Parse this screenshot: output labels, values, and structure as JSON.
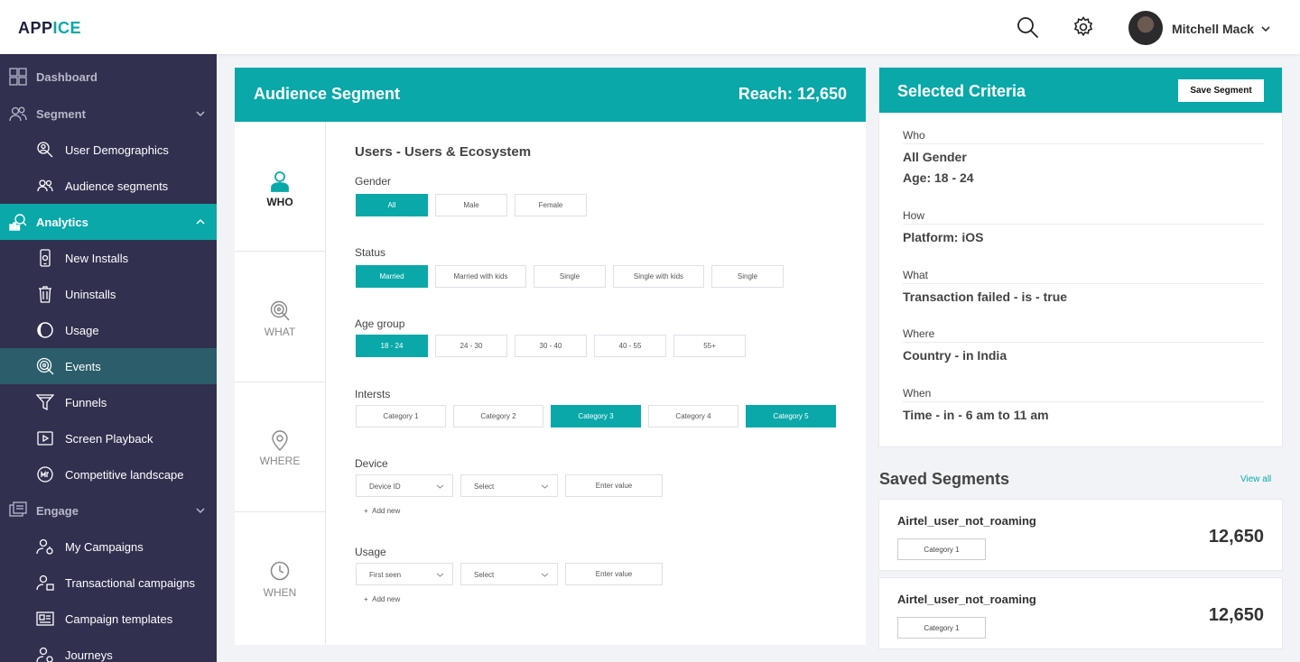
{
  "header": {
    "logo_part1": "APP",
    "logo_part2": "ICE",
    "user_name": "Mitchell Mack",
    "accent": "#0aa8a8"
  },
  "sidebar": {
    "items": [
      {
        "label": "Dashboard",
        "icon": "dashboard-icon",
        "level": "top"
      },
      {
        "label": "Segment",
        "icon": "users-icon",
        "level": "top"
      },
      {
        "label": "User Demographics",
        "icon": "user-search-icon",
        "level": "sub"
      },
      {
        "label": "Audience segments",
        "icon": "audience-icon",
        "level": "sub"
      },
      {
        "label": "Analytics",
        "icon": "analytics-icon",
        "level": "top"
      },
      {
        "label": "New Installs",
        "icon": "phone-icon",
        "level": "sub"
      },
      {
        "label": "Uninstalls",
        "icon": "trash-icon",
        "level": "sub"
      },
      {
        "label": "Usage",
        "icon": "usage-icon",
        "level": "sub"
      },
      {
        "label": "Events",
        "icon": "events-icon",
        "level": "sub"
      },
      {
        "label": "Funnels",
        "icon": "funnel-icon",
        "level": "sub"
      },
      {
        "label": "Screen Playback",
        "icon": "playback-icon",
        "level": "sub"
      },
      {
        "label": "Competitive landscape",
        "icon": "landscape-icon",
        "level": "sub"
      },
      {
        "label": "Engage",
        "icon": "engage-icon",
        "level": "top"
      },
      {
        "label": "My Campaigns",
        "icon": "campaign-icon",
        "level": "sub"
      },
      {
        "label": "Transactional campaigns",
        "icon": "transactional-icon",
        "level": "sub"
      },
      {
        "label": "Campaign templates",
        "icon": "template-icon",
        "level": "sub"
      },
      {
        "label": "Journeys",
        "icon": "journey-icon",
        "level": "sub"
      }
    ]
  },
  "segment": {
    "title": "Audience Segment",
    "reach": "Reach: 12,650",
    "tabs": [
      "WHO",
      "WHAT",
      "WHERE",
      "WHEN"
    ],
    "section_title": "Users - Users & Ecosystem",
    "gender": {
      "label": "Gender",
      "options": [
        "All",
        "Male",
        "Female"
      ],
      "selected": "All"
    },
    "status": {
      "label": "Status",
      "options": [
        "Married",
        "Married with kids",
        "Single",
        "Single with kids",
        "Single"
      ],
      "selected": "Married"
    },
    "age_group": {
      "label": "Age group",
      "options": [
        "18 - 24",
        "24 - 30",
        "30 - 40",
        "40 - 55",
        "55+"
      ],
      "selected": "18 - 24"
    },
    "interests": {
      "label": "Intersts",
      "options": [
        "Category 1",
        "Category 2",
        "Category 3",
        "Category 4",
        "Category 5"
      ],
      "selected": [
        "Category 3",
        "Category 5"
      ]
    },
    "device": {
      "label": "Device",
      "field": "Device ID",
      "operator": "Select",
      "value_placeholder": "Enter value",
      "add_new": "Add new"
    },
    "usage": {
      "label": "Usage",
      "field": "First seen",
      "operator": "Select",
      "value_placeholder": "Enter value",
      "add_new": "Add new"
    }
  },
  "criteria": {
    "title": "Selected Criteria",
    "save_label": "Save Segment",
    "who_label": "Who",
    "who_values": [
      "All Gender",
      "Age: 18 - 24"
    ],
    "how_label": "How",
    "how_value": "Platform: iOS",
    "what_label": "What",
    "what_value": "Transaction failed - is - true",
    "where_label": "Where",
    "where_value": "Country - in India",
    "when_label": "When",
    "when_value": "Time - in - 6 am to 11 am"
  },
  "saved": {
    "title": "Saved Segments",
    "view_all": "View all",
    "items": [
      {
        "name": "Airtel_user_not_roaming",
        "category": "Category 1",
        "count": "12,650"
      },
      {
        "name": "Airtel_user_not_roaming",
        "category": "Category 1",
        "count": "12,650"
      }
    ]
  }
}
